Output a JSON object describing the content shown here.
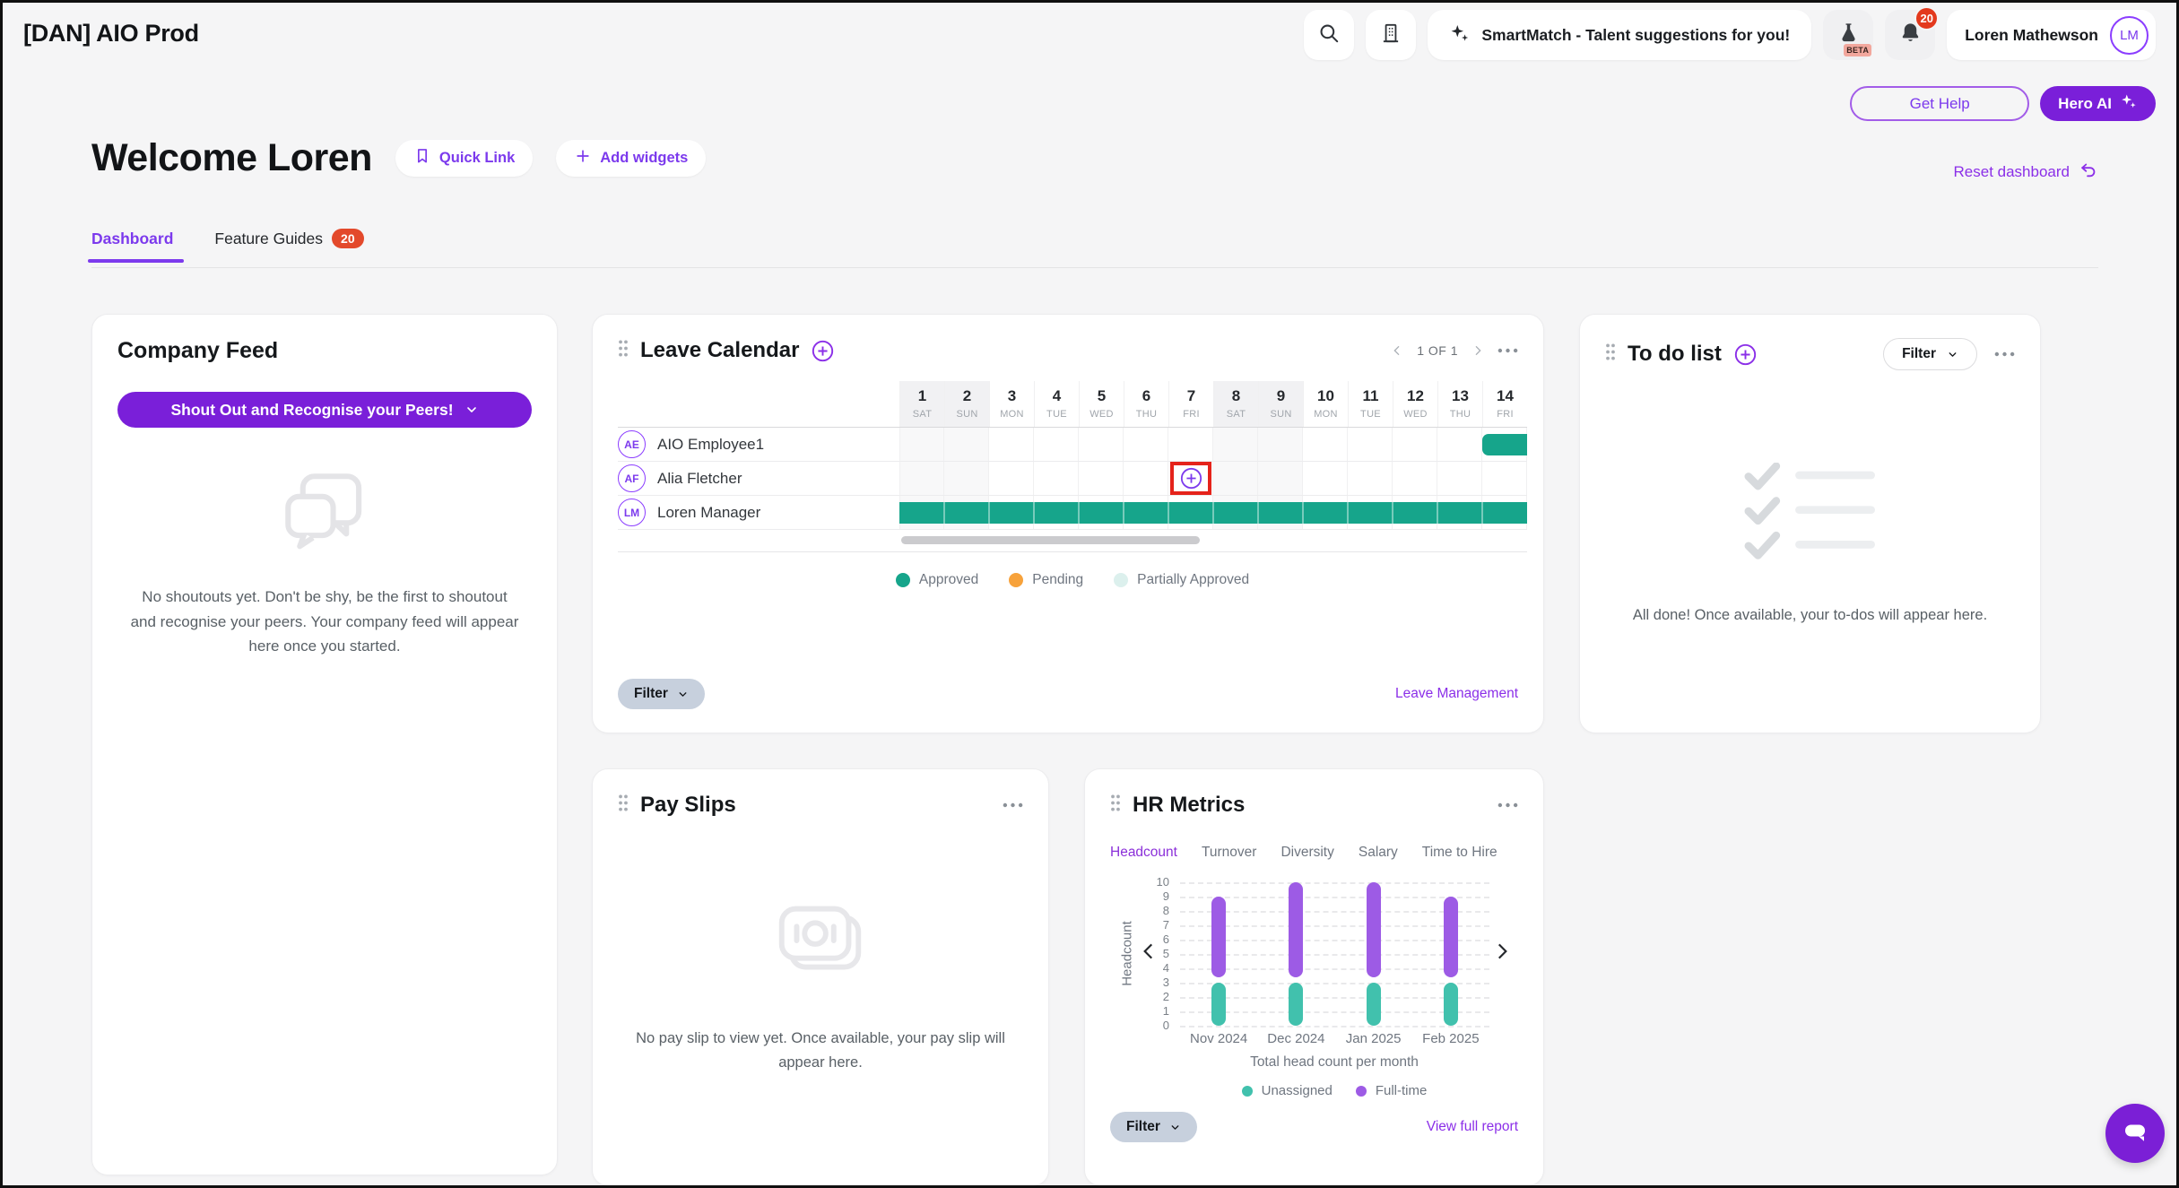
{
  "topbar": {
    "app_title": "[DAN] AIO Prod",
    "smartmatch_label": "SmartMatch - Talent suggestions for you!",
    "beta_label": "BETA",
    "notification_count": "20",
    "user_name": "Loren Mathewson",
    "user_initials": "LM"
  },
  "actions": {
    "get_help": "Get Help",
    "hero_ai": "Hero AI"
  },
  "page": {
    "welcome_title": "Welcome Loren",
    "quick_link": "Quick Link",
    "add_widgets": "Add widgets",
    "reset_dashboard": "Reset dashboard",
    "tabs": [
      {
        "label": "Dashboard"
      },
      {
        "label": "Feature Guides",
        "badge": "20"
      }
    ]
  },
  "company_feed": {
    "title": "Company Feed",
    "shoutout_button": "Shout Out and Recognise your Peers!",
    "empty_text": "No shoutouts yet. Don't be shy, be the first to shoutout and recognise your peers. Your company feed will appear here once you started."
  },
  "leave_calendar": {
    "title": "Leave Calendar",
    "pagination": "1 OF 1",
    "days": [
      {
        "num": "1",
        "day": "SAT"
      },
      {
        "num": "2",
        "day": "SUN"
      },
      {
        "num": "3",
        "day": "MON"
      },
      {
        "num": "4",
        "day": "TUE"
      },
      {
        "num": "5",
        "day": "WED"
      },
      {
        "num": "6",
        "day": "THU"
      },
      {
        "num": "7",
        "day": "FRI"
      },
      {
        "num": "8",
        "day": "SAT"
      },
      {
        "num": "9",
        "day": "SUN"
      },
      {
        "num": "10",
        "day": "MON"
      },
      {
        "num": "11",
        "day": "TUE"
      },
      {
        "num": "12",
        "day": "WED"
      },
      {
        "num": "13",
        "day": "THU"
      },
      {
        "num": "14",
        "day": "FRI"
      }
    ],
    "rows": [
      {
        "initials": "AE",
        "name": "AIO Employee1",
        "bars": [
          {
            "start": 14,
            "end": 14,
            "type": "approved",
            "color": "#16A58B",
            "round_left": true
          }
        ]
      },
      {
        "initials": "AF",
        "name": "Alia Fletcher",
        "add_icon_day": 7,
        "highlight": true
      },
      {
        "initials": "LM",
        "name": "Loren Manager",
        "bars": [
          {
            "start": 1,
            "end": 14,
            "type": "approved",
            "color": "#16A58B"
          }
        ]
      }
    ],
    "highlight_color": "#E5231B",
    "legend": [
      {
        "label": "Approved",
        "color": "#16A58B"
      },
      {
        "label": "Pending",
        "color": "#F7A23B"
      },
      {
        "label": "Partially Approved",
        "color": "#DCF0ED"
      }
    ],
    "filter_label": "Filter",
    "link": "Leave Management"
  },
  "todo": {
    "title": "To do list",
    "filter_label": "Filter",
    "empty_text": "All done! Once available, your to-dos will appear here."
  },
  "payslips": {
    "title": "Pay Slips",
    "empty_text": "No pay slip to view yet. Once available, your pay slip will appear here."
  },
  "hr_metrics": {
    "title": "HR Metrics",
    "tabs": [
      "Headcount",
      "Turnover",
      "Diversity",
      "Salary",
      "Time to Hire"
    ],
    "active_tab": "Headcount",
    "filter_label": "Filter",
    "link": "View full report",
    "chart_data": {
      "type": "bar",
      "stacked": true,
      "categories": [
        "Nov 2024",
        "Dec 2024",
        "Jan 2025",
        "Feb 2025"
      ],
      "series": [
        {
          "name": "Unassigned",
          "color": "#41C1AD",
          "values": [
            3,
            3,
            3,
            3
          ]
        },
        {
          "name": "Full-time",
          "color": "#9D5BE5",
          "values": [
            6,
            7,
            7,
            6
          ]
        }
      ],
      "title": "Total head count per month",
      "xlabel": "",
      "ylabel": "Headcount",
      "ylim": [
        0,
        10
      ],
      "yticks": [
        0,
        1,
        2,
        3,
        4,
        5,
        6,
        7,
        8,
        9,
        10
      ],
      "grid": "dashed",
      "legend_position": "bottom"
    }
  }
}
